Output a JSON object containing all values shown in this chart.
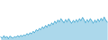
{
  "values": [
    5.5,
    5.2,
    5.8,
    5.3,
    5.6,
    5.1,
    5.7,
    5.4,
    5.2,
    5.6,
    5.4,
    5.8,
    5.5,
    5.9,
    5.6,
    6.0,
    5.8,
    6.3,
    6.0,
    6.5,
    6.2,
    6.8,
    6.5,
    7.2,
    6.9,
    7.5,
    7.2,
    7.9,
    7.5,
    8.2,
    7.8,
    8.5,
    8.1,
    8.8,
    8.4,
    9.2,
    8.7,
    9.5,
    9.0,
    9.8,
    9.3,
    8.8,
    9.6,
    9.0,
    9.8,
    9.2,
    8.7,
    9.4,
    8.9,
    9.6,
    9.0,
    9.8,
    9.3,
    10.1,
    9.5,
    8.8,
    9.6,
    9.0,
    9.8,
    9.3,
    8.7,
    9.5,
    8.9,
    9.7,
    9.1,
    9.9,
    9.3,
    10.2,
    9.5,
    9.0
  ],
  "line_color": "#5bb3d8",
  "fill_color": "#5bb3d8",
  "fill_alpha": 0.5,
  "linewidth": 0.7,
  "background_color": "#ffffff"
}
